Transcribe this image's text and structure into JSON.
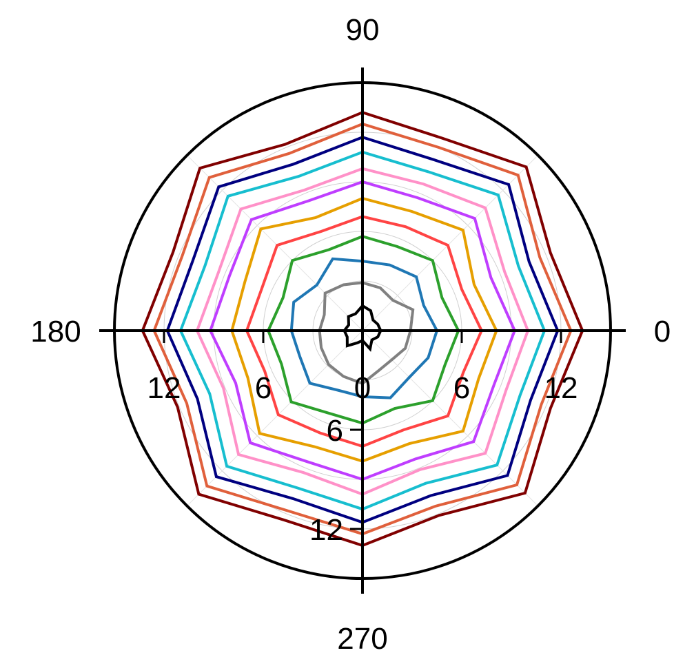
{
  "chart_data": {
    "type": "polar-line",
    "title": "",
    "angle_labels": [
      {
        "angle": 0,
        "text": "0"
      },
      {
        "angle": 90,
        "text": "90"
      },
      {
        "angle": 180,
        "text": "180"
      },
      {
        "angle": 270,
        "text": "270"
      }
    ],
    "radial_axis": {
      "range": [
        0,
        15
      ],
      "ticks": [
        0,
        6,
        12
      ],
      "tick_labels": [
        "0",
        "6",
        "12"
      ],
      "grid_circles": [
        3,
        6,
        9,
        12,
        15
      ]
    },
    "angles_deg": [
      0,
      22.5,
      45,
      67.5,
      90,
      112.5,
      135,
      157.5,
      180,
      202.5,
      225,
      247.5,
      270,
      292.5,
      315,
      337.5
    ],
    "series": [
      {
        "color": "#000000",
        "values": [
          1.1,
          1.0,
          0.9,
          1.3,
          1.5,
          1.1,
          1.2,
          0.9,
          1.1,
          1.0,
          1.3,
          0.8,
          0.6,
          1.2,
          0.8,
          1.0
        ]
      },
      {
        "color": "#808080",
        "values": [
          2.9,
          3.3,
          2.6,
          2.8,
          2.9,
          3.0,
          3.2,
          2.5,
          2.6,
          2.7,
          2.9,
          3.0,
          3.2,
          2.6,
          2.5,
          2.8
        ]
      },
      {
        "color": "#1f77b4",
        "values": [
          4.5,
          4.0,
          4.6,
          4.3,
          4.2,
          4.7,
          3.9,
          4.5,
          4.3,
          4.1,
          4.5,
          3.9,
          4.0,
          4.4,
          4.0,
          4.3
        ]
      },
      {
        "color": "#2ca02c",
        "values": [
          5.8,
          5.2,
          6.0,
          5.5,
          5.7,
          5.3,
          6.0,
          5.2,
          5.7,
          5.3,
          6.1,
          5.4,
          5.6,
          5.1,
          6.0,
          5.4
        ]
      },
      {
        "color": "#ff4444",
        "values": [
          7.2,
          6.5,
          7.3,
          6.8,
          6.9,
          6.5,
          7.3,
          6.6,
          7.0,
          6.4,
          7.2,
          6.7,
          7.0,
          6.5,
          7.3,
          6.6
        ]
      },
      {
        "color": "#e69f00",
        "values": [
          8.1,
          7.3,
          8.6,
          7.8,
          8.0,
          7.4,
          8.7,
          7.7,
          7.9,
          7.5,
          8.8,
          7.6,
          7.9,
          7.4,
          8.6,
          7.6
        ]
      },
      {
        "color": "#bf3eff",
        "values": [
          9.2,
          8.4,
          9.6,
          8.7,
          9.0,
          8.5,
          9.5,
          8.7,
          9.2,
          8.3,
          9.6,
          8.6,
          9.0,
          8.4,
          9.5,
          8.6
        ]
      },
      {
        "color": "#ff91c8",
        "values": [
          10.0,
          9.3,
          10.5,
          9.6,
          9.8,
          9.2,
          10.4,
          9.4,
          10.0,
          9.1,
          10.6,
          9.3,
          9.9,
          9.1,
          10.5,
          9.4
        ]
      },
      {
        "color": "#17becf",
        "values": [
          11.0,
          10.2,
          11.6,
          10.4,
          10.8,
          10.1,
          11.5,
          10.3,
          11.0,
          10.0,
          11.6,
          10.3,
          10.8,
          10.0,
          11.5,
          10.3
        ]
      },
      {
        "color": "#000080",
        "values": [
          11.8,
          10.9,
          12.5,
          11.2,
          11.7,
          10.9,
          12.3,
          11.1,
          11.8,
          10.8,
          12.5,
          11.0,
          11.6,
          10.8,
          12.4,
          11.0
        ]
      },
      {
        "color": "#e0603c",
        "values": [
          12.6,
          11.6,
          13.3,
          12.0,
          12.5,
          11.6,
          13.1,
          11.8,
          12.6,
          11.5,
          13.3,
          11.8,
          12.3,
          11.5,
          13.2,
          11.7
        ]
      },
      {
        "color": "#800000",
        "values": [
          13.3,
          12.3,
          14.0,
          12.6,
          13.2,
          12.2,
          13.9,
          12.4,
          13.3,
          12.1,
          14.0,
          12.4,
          13.0,
          12.1,
          13.9,
          12.3
        ]
      }
    ]
  }
}
